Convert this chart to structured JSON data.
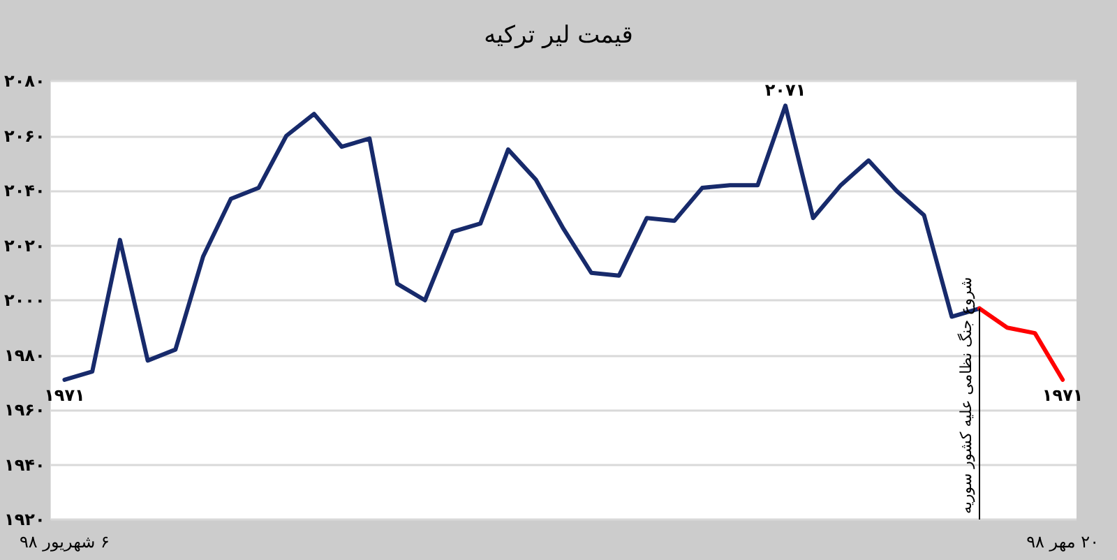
{
  "chart_data": {
    "type": "line",
    "title": "قیمت لیر ترکیه",
    "categories": [
      "۶ شهریور ۹۸",
      null,
      null,
      null,
      null,
      null,
      null,
      null,
      null,
      null,
      null,
      null,
      null,
      null,
      null,
      null,
      null,
      null,
      null,
      null,
      null,
      null,
      null,
      null,
      null,
      null,
      null,
      null,
      null,
      null,
      null,
      null,
      null,
      null,
      null,
      null,
      "۲۰ مهر ۹۸"
    ],
    "series": [
      {
        "color": "#172a6b",
        "values": [
          1971,
          1974,
          2022,
          1978,
          1982,
          2016,
          2037,
          2041,
          2060,
          2068,
          2056,
          2059,
          2006,
          2000,
          2025,
          2028,
          2055,
          2044,
          2026,
          2010,
          2009,
          2030,
          2029,
          2041,
          2042,
          2042,
          2071,
          2030,
          2042,
          2051,
          2040,
          2031,
          1994,
          1997,
          null,
          null,
          null
        ],
        "value_labels": [
          "۱۹۷۱",
          null,
          null,
          null,
          null,
          null,
          null,
          null,
          null,
          null,
          null,
          null,
          null,
          null,
          null,
          null,
          null,
          null,
          null,
          null,
          null,
          null,
          null,
          null,
          null,
          null,
          "۲۰۷۱",
          null,
          null,
          null,
          null,
          null,
          null,
          null,
          null,
          null,
          null
        ]
      },
      {
        "color": "#ff0000",
        "values": [
          null,
          null,
          null,
          null,
          null,
          null,
          null,
          null,
          null,
          null,
          null,
          null,
          null,
          null,
          null,
          null,
          null,
          null,
          null,
          null,
          null,
          null,
          null,
          null,
          null,
          null,
          null,
          null,
          null,
          null,
          null,
          null,
          null,
          1997,
          1990,
          1988,
          1971
        ],
        "value_labels": [
          null,
          null,
          null,
          null,
          null,
          null,
          null,
          null,
          null,
          null,
          null,
          null,
          null,
          null,
          null,
          null,
          null,
          null,
          null,
          null,
          null,
          null,
          null,
          null,
          null,
          null,
          null,
          null,
          null,
          null,
          null,
          null,
          null,
          null,
          null,
          null,
          "۱۹۷۱"
        ]
      }
    ],
    "ylim": [
      1920,
      2080
    ],
    "yticks": [
      {
        "value": 1920,
        "label": "۱۹۲۰"
      },
      {
        "value": 1940,
        "label": "۱۹۴۰"
      },
      {
        "value": 1960,
        "label": "۱۹۶۰"
      },
      {
        "value": 1980,
        "label": "۱۹۸۰"
      },
      {
        "value": 2000,
        "label": "۲۰۰۰"
      },
      {
        "value": 2020,
        "label": "۲۰۲۰"
      },
      {
        "value": 2040,
        "label": "۲۰۴۰"
      },
      {
        "value": 2060,
        "label": "۲۰۶۰"
      },
      {
        "value": 2080,
        "label": "۲۰۸۰"
      }
    ],
    "annotations": [
      "شروع جنگ نظامی علیه کشور سوریه"
    ],
    "grid": "y",
    "marker": "none",
    "line_style": "solid"
  }
}
